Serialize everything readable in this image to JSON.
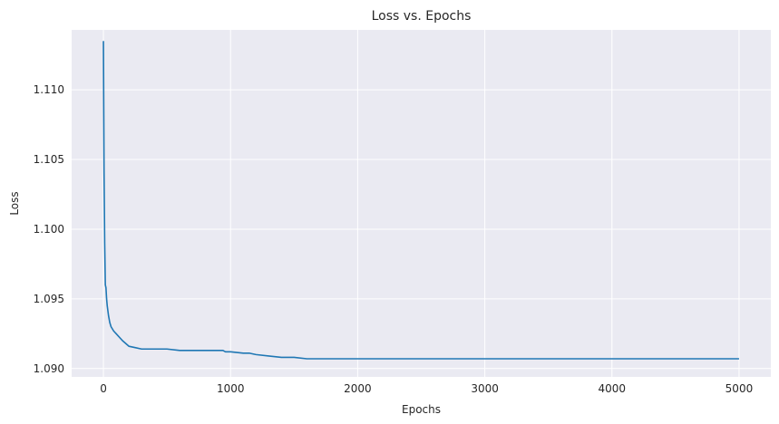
{
  "chart_data": {
    "type": "line",
    "title": "Loss vs. Epochs",
    "xlabel": "Epochs",
    "ylabel": "Loss",
    "xlim": [
      -250,
      5250
    ],
    "ylim": [
      1.0894,
      1.1143
    ],
    "xticks": [
      0,
      1000,
      2000,
      3000,
      4000,
      5000
    ],
    "xtick_labels": [
      "0",
      "1000",
      "2000",
      "3000",
      "4000",
      "5000"
    ],
    "yticks": [
      1.09,
      1.095,
      1.1,
      1.105,
      1.11
    ],
    "ytick_labels": [
      "1.090",
      "1.095",
      "1.100",
      "1.105",
      "1.110"
    ],
    "grid": true,
    "series": [
      {
        "name": "Loss",
        "color": "#1f77b4",
        "x": [
          0,
          5,
          10,
          15,
          20,
          25,
          30,
          40,
          50,
          60,
          80,
          100,
          150,
          200,
          250,
          300,
          400,
          500,
          600,
          700,
          800,
          900,
          940,
          960,
          1000,
          1100,
          1150,
          1200,
          1300,
          1400,
          1500,
          1600,
          1700,
          1800,
          2000,
          2500,
          3000,
          3500,
          4000,
          4500,
          5000
        ],
        "y": [
          1.1135,
          1.104,
          1.099,
          1.096,
          1.0958,
          1.095,
          1.0945,
          1.0938,
          1.0933,
          1.093,
          1.0927,
          1.0925,
          1.092,
          1.0916,
          1.0915,
          1.0914,
          1.0914,
          1.0914,
          1.0913,
          1.0913,
          1.0913,
          1.0913,
          1.0913,
          1.0912,
          1.0912,
          1.0911,
          1.0911,
          1.091,
          1.0909,
          1.0908,
          1.0908,
          1.0907,
          1.0907,
          1.0907,
          1.0907,
          1.0907,
          1.0907,
          1.0907,
          1.0907,
          1.0907,
          1.0907
        ]
      }
    ]
  }
}
